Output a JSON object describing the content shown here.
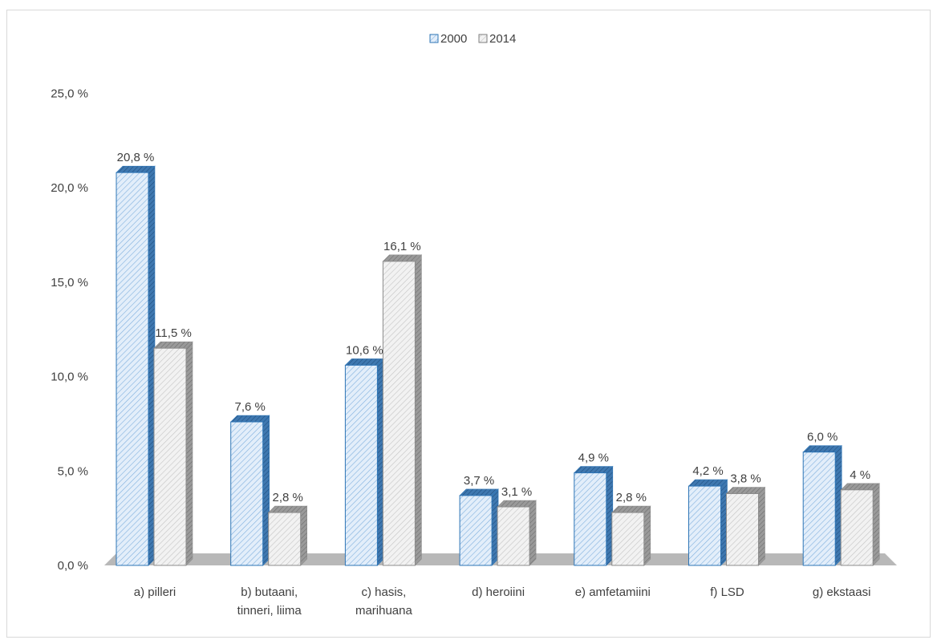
{
  "chart_data": {
    "type": "bar",
    "categories": [
      "a) pilleri",
      "b) butaani, tinneri, liima",
      "c) hasis, marihuana",
      "d) heroiini",
      "e) amfetamiini",
      "f) LSD",
      "g) ekstaasi"
    ],
    "category_lines": [
      [
        "a) pilleri"
      ],
      [
        "b) butaani,",
        "tinneri, liima"
      ],
      [
        "c) hasis,",
        "marihuana"
      ],
      [
        "d) heroiini"
      ],
      [
        "e) amfetamiini"
      ],
      [
        "f) LSD"
      ],
      [
        "g) ekstaasi"
      ]
    ],
    "series": [
      {
        "name": "2000",
        "values": [
          20.8,
          7.6,
          10.6,
          3.7,
          4.9,
          4.2,
          6.0
        ],
        "labels": [
          "20,8 %",
          "7,6 %",
          "10,6 %",
          "3,7 %",
          "4,9 %",
          "4,2 %",
          "6,0 %"
        ],
        "color": "#ddebf7",
        "stroke": "#5b9bd5"
      },
      {
        "name": "2014",
        "values": [
          11.5,
          2.8,
          16.1,
          3.1,
          2.8,
          3.8,
          4.0
        ],
        "labels": [
          "11,5 %",
          "2,8 %",
          "16,1 %",
          "3,1 %",
          "2,8 %",
          "3,8 %",
          "4 %"
        ],
        "color": "#ededed",
        "stroke": "#a5a5a5"
      }
    ],
    "y_ticks": [
      0,
      5,
      10,
      15,
      20,
      25
    ],
    "y_tick_labels": [
      "0,0 %",
      "5,0 %",
      "10,0 %",
      "15,0 %",
      "20,0 %",
      "25,0 %"
    ],
    "ylim": [
      0,
      25
    ],
    "legend_position": "top-center",
    "grid": false,
    "style": "3d-clustered-column"
  }
}
